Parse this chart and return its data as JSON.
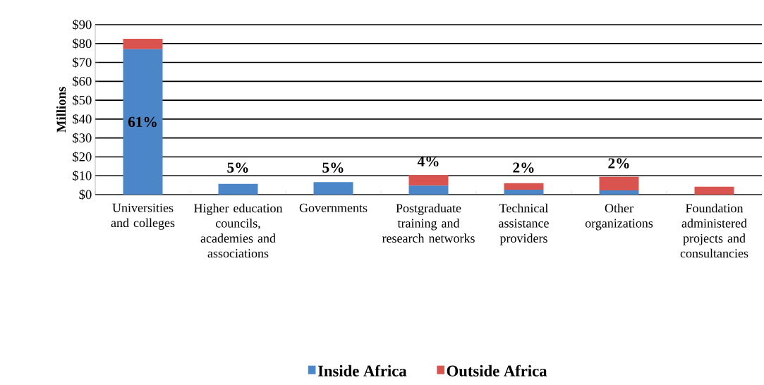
{
  "chart_data": {
    "type": "bar",
    "stacked": true,
    "ylabel": "Millions",
    "categories": [
      "Universities and colleges",
      "Higher education councils, academies and associations",
      "Governments",
      "Postgraduate training and research networks",
      "Technical assistance providers",
      "Other organizations",
      "Foundation administered projects and consultancies"
    ],
    "series": [
      {
        "name": "Inside Africa",
        "color": "#4a86c8",
        "values": [
          77,
          5.7,
          6.6,
          4.8,
          2.6,
          2.2,
          0
        ]
      },
      {
        "name": "Outside Africa",
        "color": "#d9534f",
        "values": [
          5.5,
          0,
          0,
          5.6,
          3.5,
          7.2,
          4.2
        ]
      }
    ],
    "ylim": [
      0,
      90
    ],
    "yticks": [
      {
        "value": 0,
        "label": "$0"
      },
      {
        "value": 10,
        "label": "$10"
      },
      {
        "value": 20,
        "label": "$20"
      },
      {
        "value": 30,
        "label": "$30"
      },
      {
        "value": 40,
        "label": "$40"
      },
      {
        "value": 50,
        "label": "$50"
      },
      {
        "value": 60,
        "label": "$60"
      },
      {
        "value": 70,
        "label": "$70"
      },
      {
        "value": 80,
        "label": "$80"
      },
      {
        "value": 90,
        "label": "$90"
      }
    ],
    "grid": "y",
    "legend": "bottom",
    "annotations": [
      "61%",
      "5%",
      "5%",
      "4%",
      "2%",
      "2%"
    ]
  }
}
